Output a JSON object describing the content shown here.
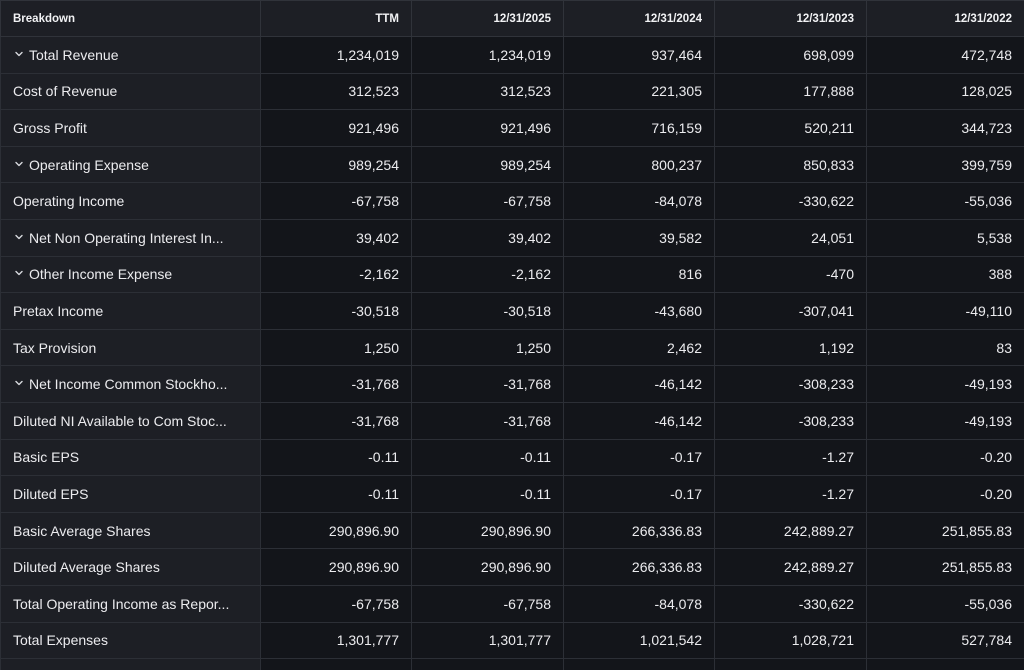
{
  "header": {
    "breakdown_label": "Breakdown",
    "columns": [
      "TTM",
      "12/31/2025",
      "12/31/2024",
      "12/31/2023",
      "12/31/2022"
    ]
  },
  "rows": [
    {
      "label": "Total Revenue",
      "expandable": true,
      "values": [
        "1,234,019",
        "1,234,019",
        "937,464",
        "698,099",
        "472,748"
      ]
    },
    {
      "label": "Cost of Revenue",
      "expandable": false,
      "values": [
        "312,523",
        "312,523",
        "221,305",
        "177,888",
        "128,025"
      ]
    },
    {
      "label": "Gross Profit",
      "expandable": false,
      "values": [
        "921,496",
        "921,496",
        "716,159",
        "520,211",
        "344,723"
      ]
    },
    {
      "label": "Operating Expense",
      "expandable": true,
      "values": [
        "989,254",
        "989,254",
        "800,237",
        "850,833",
        "399,759"
      ]
    },
    {
      "label": "Operating Income",
      "expandable": false,
      "values": [
        "-67,758",
        "-67,758",
        "-84,078",
        "-330,622",
        "-55,036"
      ]
    },
    {
      "label": "Net Non Operating Interest In...",
      "expandable": true,
      "values": [
        "39,402",
        "39,402",
        "39,582",
        "24,051",
        "5,538"
      ]
    },
    {
      "label": "Other Income Expense",
      "expandable": true,
      "values": [
        "-2,162",
        "-2,162",
        "816",
        "-470",
        "388"
      ]
    },
    {
      "label": "Pretax Income",
      "expandable": false,
      "values": [
        "-30,518",
        "-30,518",
        "-43,680",
        "-307,041",
        "-49,110"
      ]
    },
    {
      "label": "Tax Provision",
      "expandable": false,
      "values": [
        "1,250",
        "1,250",
        "2,462",
        "1,192",
        "83"
      ]
    },
    {
      "label": "Net Income Common Stockho...",
      "expandable": true,
      "values": [
        "-31,768",
        "-31,768",
        "-46,142",
        "-308,233",
        "-49,193"
      ]
    },
    {
      "label": "Diluted NI Available to Com Stoc...",
      "expandable": false,
      "values": [
        "-31,768",
        "-31,768",
        "-46,142",
        "-308,233",
        "-49,193"
      ]
    },
    {
      "label": "Basic EPS",
      "expandable": false,
      "values": [
        "-0.11",
        "-0.11",
        "-0.17",
        "-1.27",
        "-0.20"
      ]
    },
    {
      "label": "Diluted EPS",
      "expandable": false,
      "values": [
        "-0.11",
        "-0.11",
        "-0.17",
        "-1.27",
        "-0.20"
      ]
    },
    {
      "label": "Basic Average Shares",
      "expandable": false,
      "values": [
        "290,896.90",
        "290,896.90",
        "266,336.83",
        "242,889.27",
        "251,855.83"
      ]
    },
    {
      "label": "Diluted Average Shares",
      "expandable": false,
      "values": [
        "290,896.90",
        "290,896.90",
        "266,336.83",
        "242,889.27",
        "251,855.83"
      ]
    },
    {
      "label": "Total Operating Income as Repor...",
      "expandable": false,
      "values": [
        "-67,758",
        "-67,758",
        "-84,078",
        "-330,622",
        "-55,036"
      ]
    },
    {
      "label": "Total Expenses",
      "expandable": false,
      "values": [
        "1,301,777",
        "1,301,777",
        "1,021,542",
        "1,028,721",
        "527,784"
      ]
    }
  ],
  "icons": {
    "expand": "chevron-down-icon"
  },
  "colors": {
    "background": "#13151a",
    "label_column": "#1d1f25",
    "border": "#2c2f36",
    "text": "#ececef"
  }
}
